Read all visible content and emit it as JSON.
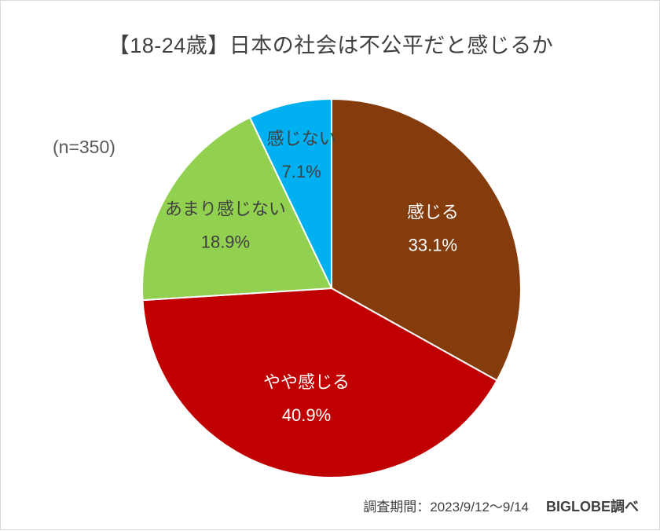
{
  "chart_data": {
    "type": "pie",
    "title": "【18-24歳】日本の社会は不公平だと感じるか",
    "sample_size": "(n=350)",
    "start": "top",
    "direction": "clockwise",
    "slices": [
      {
        "label": "感じる",
        "value": 33.1,
        "value_label": "33.1%",
        "color": "#843c0c",
        "label_color": "#ffffff"
      },
      {
        "label": "やや感じる",
        "value": 40.9,
        "value_label": "40.9%",
        "color": "#c00000",
        "label_color": "#ffffff"
      },
      {
        "label": "あまり感じない",
        "value": 18.9,
        "value_label": "18.9%",
        "color": "#92d050",
        "label_color": "#404040"
      },
      {
        "label": "感じない",
        "value": 7.1,
        "value_label": "7.1%",
        "color": "#00b0f0",
        "label_color": "#404040"
      }
    ]
  },
  "footer": {
    "period": "調査期間：2023/9/12～9/14",
    "brand": "BIGLOBE調べ"
  }
}
